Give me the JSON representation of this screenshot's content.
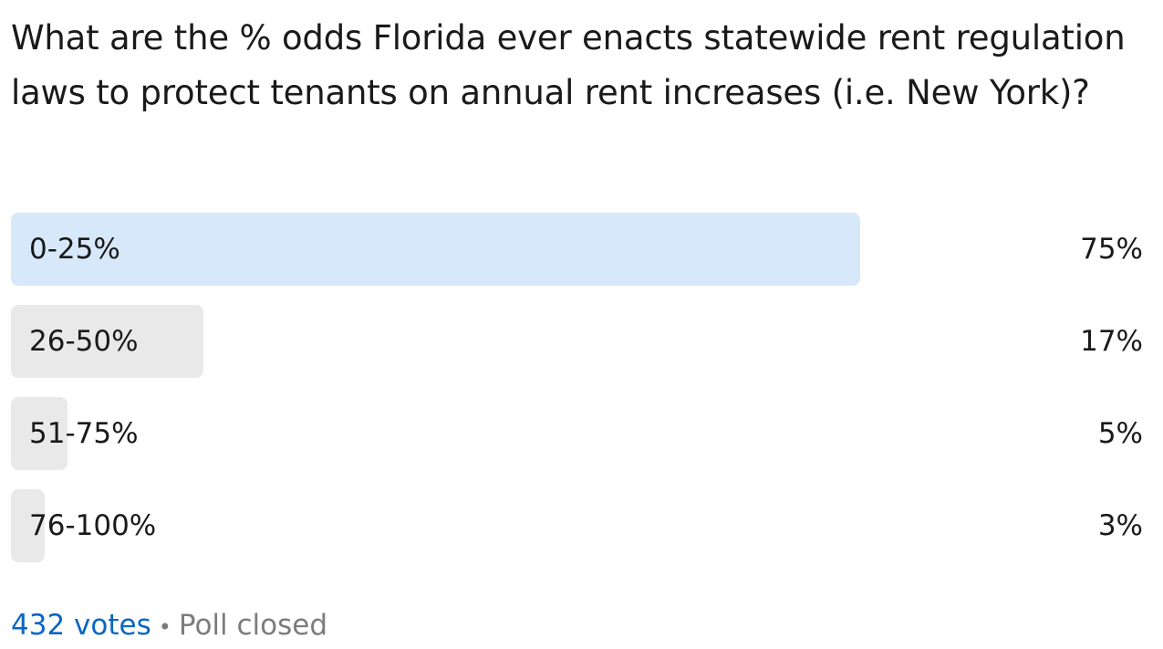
{
  "poll": {
    "question": "What are the % odds Florida ever enacts statewide rent regulation laws to protect tenants on annual rent increases (i.e. New York)?",
    "options": [
      {
        "label": "0-25%",
        "percent_text": "75%",
        "percent": 75,
        "winner": true
      },
      {
        "label": "26-50%",
        "percent_text": "17%",
        "percent": 17,
        "winner": false
      },
      {
        "label": "51-75%",
        "percent_text": "5%",
        "percent": 5,
        "winner": false
      },
      {
        "label": "76-100%",
        "percent_text": "3%",
        "percent": 3,
        "winner": false
      }
    ],
    "votes_label": "432 votes",
    "separator": "•",
    "status": "Poll closed"
  },
  "colors": {
    "winner_bar": "#d7e8fb",
    "other_bar": "#e9e9e9",
    "link": "#0a66c2",
    "muted": "#7c7c7c"
  }
}
